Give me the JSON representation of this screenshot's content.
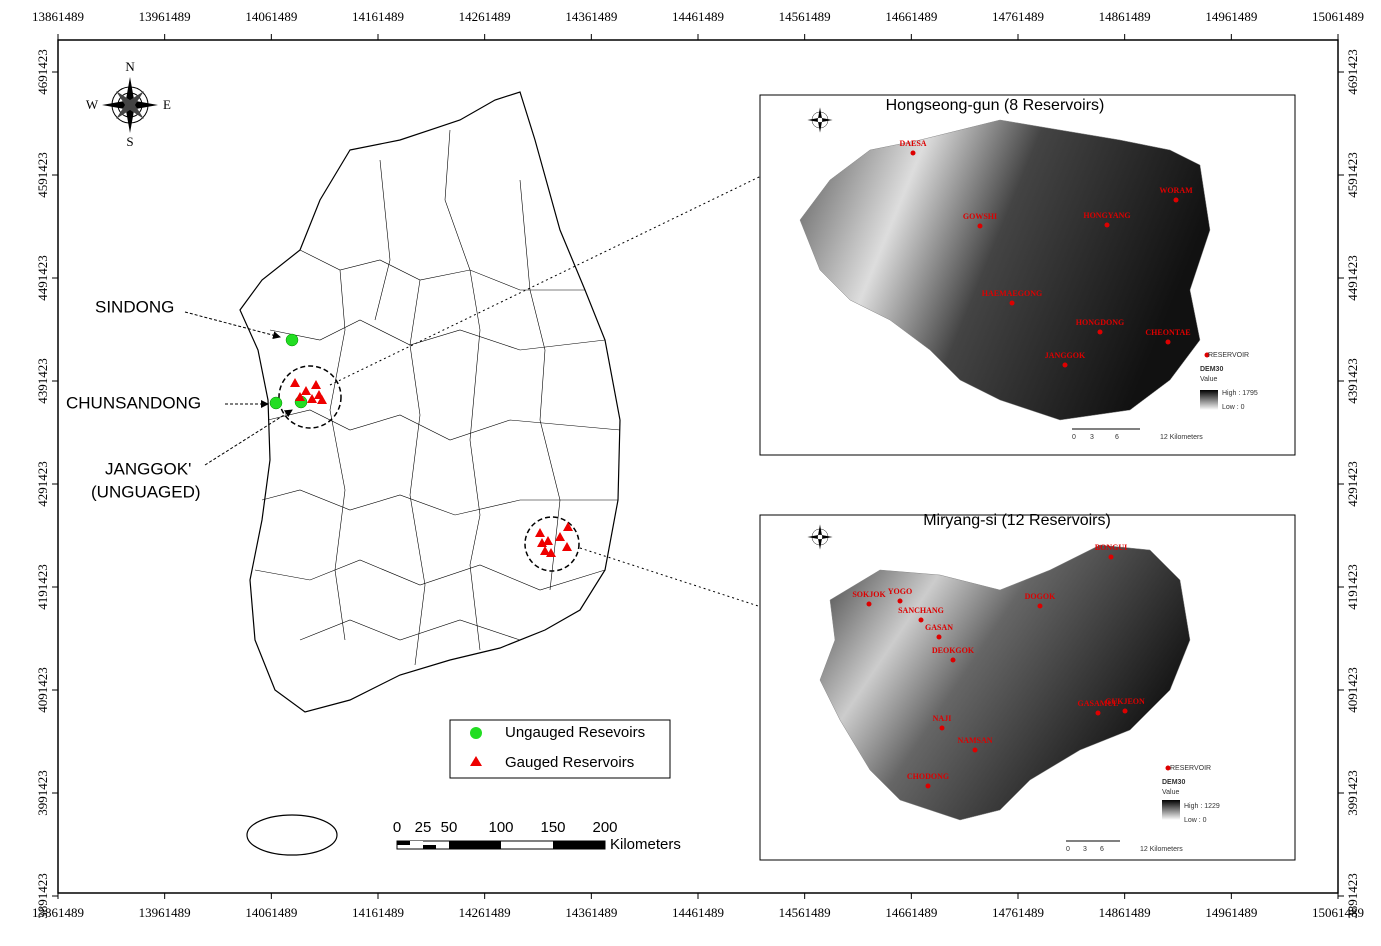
{
  "axes": {
    "x_ticks": [
      "13861489",
      "13961489",
      "14061489",
      "14161489",
      "14261489",
      "14361489",
      "14461489",
      "14561489",
      "14661489",
      "14761489",
      "14861489",
      "14961489",
      "15061489"
    ],
    "y_ticks": [
      "4691423",
      "4591423",
      "4491423",
      "4391423",
      "4291423",
      "4191423",
      "4091423",
      "3991423",
      "3891423"
    ]
  },
  "compass": {
    "n": "N",
    "s": "S",
    "e": "E",
    "w": "W"
  },
  "annotations": {
    "sindong": "SINDONG",
    "chunsandong": "CHUNSANDONG",
    "janggok": "JANGGOK'",
    "janggok_note": "(UNGUAGED)"
  },
  "legend": {
    "ungauged": "Ungauged Resevoirs",
    "gauged": "Gauged Reservoirs"
  },
  "scale_bar": {
    "ticks": [
      "0",
      "25",
      "50",
      "100",
      "150",
      "200"
    ],
    "unit": "Kilometers"
  },
  "insets": [
    {
      "title": "Hongseong-gun (8 Reservoirs)",
      "reservoirs": [
        "DAESA",
        "GOWSHI",
        "HONGYANG",
        "WORAM",
        "HAEMAEGONG",
        "HONGDONG",
        "CHEONTAE",
        "JANGGOK"
      ],
      "legend": {
        "symbol": "RESERVOIR",
        "layer": "DEM30",
        "field": "Value",
        "high": "High : 1795",
        "low": "Low : 0"
      },
      "scale": [
        "0",
        "3",
        "6",
        "12 Kilometers"
      ]
    },
    {
      "title": "Miryang-si (12 Reservoirs)",
      "reservoirs": [
        "BONGUI",
        "SOKJOK",
        "YOGO",
        "SANCHANG",
        "GASAN",
        "DEOKGOK",
        "DOGOK",
        "GASAMUL",
        "GUKJEON",
        "NAJI",
        "NAMSAN",
        "CHODONG"
      ],
      "legend": {
        "symbol": "RESERVOIR",
        "layer": "DEM30",
        "field": "Value",
        "high": "High : 1229",
        "low": "Low : 0"
      },
      "scale": [
        "0",
        "3",
        "6",
        "12 Kilometers"
      ]
    }
  ]
}
